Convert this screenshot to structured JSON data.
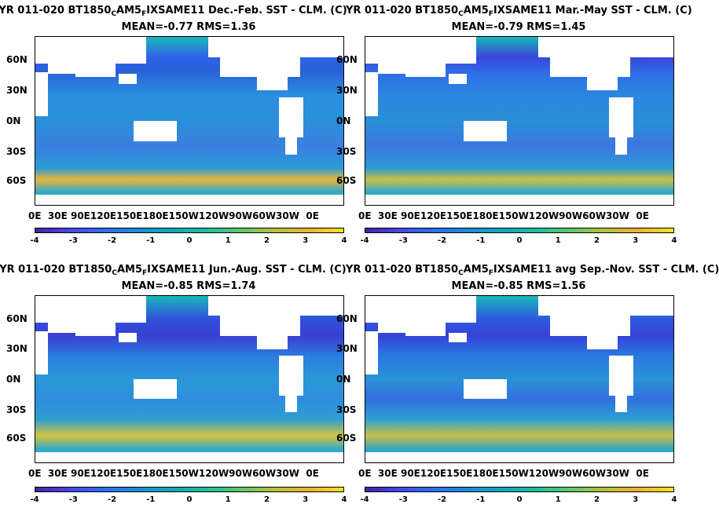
{
  "panels": [
    {
      "title_pre": "YR 011-020 BT1850",
      "title_sub1": "C",
      "title_mid": "AM5",
      "title_sub2": "F",
      "title_post": "IXSAME11  Dec.-Feb. SST - CLM. (C)",
      "stats": "MEAN=-0.77   RMS=1.36",
      "ocean_gradient": "linear-gradient(to bottom, #19b8b8 0%, #2e63e6 12%, #2a5fd9 20%, #2b8fe0 35%, #2a90d9 50%, #3b7fe0 65%, #2a9ad6 78%, #e8b73a 85%, #37a9c5 92%, #16c2a8 100%)"
    },
    {
      "title_pre": "YR 011-020 BT1850",
      "title_sub1": "C",
      "title_mid": "AM5",
      "title_sub2": "F",
      "title_post": "IXSAME11 Mar.-May SST - CLM. (C)",
      "stats": "MEAN=-0.79   RMS=1.45",
      "ocean_gradient": "linear-gradient(to bottom, #19b8b8 0%, #3a46d9 12%, #2e6fe6 22%, #2b86e0 35%, #2a8fd6 50%, #3b77e0 65%, #2c9bd4 78%, #c9c145 85%, #35a9c6 92%, #16c2a8 100%)"
    },
    {
      "title_pre": "YR 011-020 BT1850",
      "title_sub1": "C",
      "title_mid": "AM5",
      "title_sub2": "F",
      "title_post": "IXSAME11 Jun.-Aug. SST - CLM. (C)",
      "stats": "MEAN=-0.85   RMS=1.74",
      "ocean_gradient": "linear-gradient(to bottom, #19b8b8 0%, #2f50dc 14%, #3a3fd0 24%, #2a7ce0 36%, #2a98d6 50%, #2f8de0 62%, #2d9ed0 74%, #d7c43f 84%, #31aac8 92%, #16c2a8 100%)"
    },
    {
      "title_pre": "YR 011-020 BT1850",
      "title_sub1": "C",
      "title_mid": "AM5",
      "title_sub2": "F",
      "title_post": "IXSAME11 avg Sep.-Nov. SST - CLM. (C)",
      "stats": "MEAN=-0.85   RMS=1.56",
      "ocean_gradient": "linear-gradient(to bottom, #19b8b8 0%, #2e58e0 14%, #3642d6 24%, #2a78e0 36%, #2b92d6 50%, #3270e0 62%, #2c9fd2 74%, #c8bf48 84%, #34a7c7 92%, #16c2a8 100%)"
    }
  ],
  "lat_labels": [
    "60N",
    "30N",
    "0N",
    "30S",
    "60S"
  ],
  "lon_labels": [
    "0E",
    "30E",
    "90E",
    "120E",
    "150E",
    "180E",
    "150W",
    "120W",
    "90W",
    "60W",
    "30W",
    "0E"
  ],
  "lon_axis_text": "0E  30E 90E120E150E180E150W120W90W60W30W  0E",
  "cbar_ticks": [
    "-4",
    "-3",
    "-2",
    "-1",
    "0",
    "1",
    "2",
    "3",
    "4"
  ],
  "colormap": [
    "#3e26a8",
    "#4746eb",
    "#2d6cf5",
    "#1a8dd6",
    "#0aa8bd",
    "#1cbf9d",
    "#5fc66a",
    "#b6c03f",
    "#f0b12f",
    "#f9e021"
  ],
  "chart_data": [
    {
      "type": "heatmap",
      "title": "YR 011-020 BT1850 C AM5 F IXSAME11 Dec.-Feb. SST - CLM. (C)",
      "subtitle": "MEAN=-0.77   RMS=1.36",
      "colorbar_range": [
        -4,
        4
      ],
      "mean": -0.77,
      "rms": 1.36
    },
    {
      "type": "heatmap",
      "title": "YR 011-020 BT1850 C AM5 F IXSAME11 Mar.-May SST - CLM. (C)",
      "subtitle": "MEAN=-0.79   RMS=1.45",
      "colorbar_range": [
        -4,
        4
      ],
      "mean": -0.79,
      "rms": 1.45
    },
    {
      "type": "heatmap",
      "title": "YR 011-020 BT1850 C AM5 F IXSAME11 Jun.-Aug. SST - CLM. (C)",
      "subtitle": "MEAN=-0.85   RMS=1.74",
      "colorbar_range": [
        -4,
        4
      ],
      "mean": -0.85,
      "rms": 1.74
    },
    {
      "type": "heatmap",
      "title": "YR 011-020 BT1850 C AM5 F IXSAME11 avg Sep.-Nov. SST - CLM. (C)",
      "subtitle": "MEAN=-0.85   RMS=1.56",
      "colorbar_range": [
        -4,
        4
      ],
      "mean": -0.85,
      "rms": 1.56
    }
  ]
}
